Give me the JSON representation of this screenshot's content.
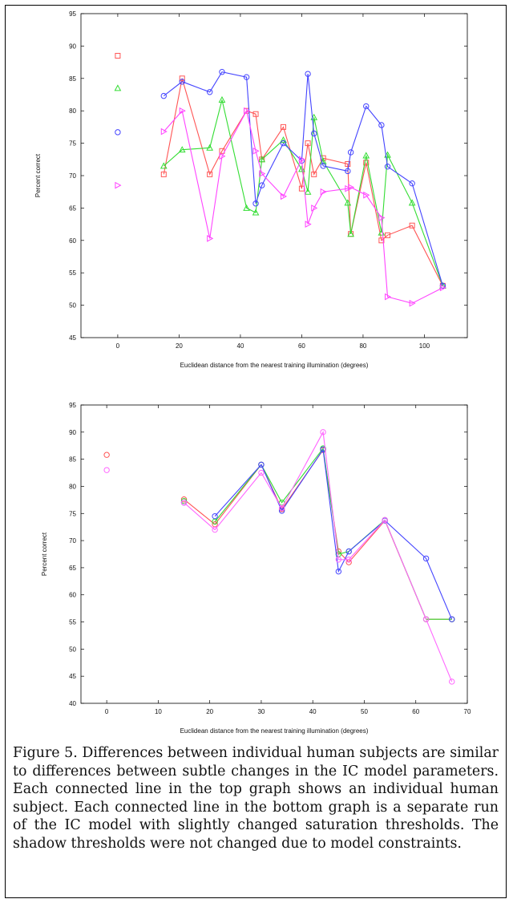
{
  "caption": "Figure 5. Differences between individual human subjects are similar to differences between subtle changes in the IC model parameters. Each connected line in the top graph shows an individual human subject. Each connected line in the bottom graph is a separate run of the IC model with slightly changed saturation thresholds. The shadow thresholds were not changed due to model constraints.",
  "chart_data": [
    {
      "type": "line",
      "xlabel": "Euclidean distance from the nearest training illumination (degrees)",
      "ylabel": "Percent correct",
      "xlim": [
        -12,
        114
      ],
      "ylim": [
        45,
        95
      ],
      "xticks": [
        0,
        20,
        40,
        60,
        80,
        100
      ],
      "yticks": [
        45,
        50,
        55,
        60,
        65,
        70,
        75,
        80,
        85,
        90,
        95
      ],
      "series": [
        {
          "color": "#ff5555",
          "marker": "square",
          "points": [
            [
              0,
              88.5
            ],
            [
              15,
              70.2
            ],
            [
              21,
              85
            ],
            [
              30,
              70.2
            ],
            [
              34,
              73.8
            ],
            [
              42,
              80
            ],
            [
              45,
              79.5
            ],
            [
              47,
              72.5
            ],
            [
              54,
              77.5
            ],
            [
              60,
              68
            ],
            [
              62,
              75
            ],
            [
              64,
              70.2
            ],
            [
              67,
              72.7
            ],
            [
              75,
              71.8
            ],
            [
              76,
              61
            ],
            [
              81,
              72
            ],
            [
              86,
              60
            ],
            [
              88,
              60.8
            ],
            [
              96,
              62.3
            ],
            [
              106,
              53
            ]
          ]
        },
        {
          "color": "#33dd33",
          "marker": "triangle-up",
          "points": [
            [
              0,
              83.5
            ],
            [
              15,
              71.5
            ],
            [
              21,
              74
            ],
            [
              30,
              74.3
            ],
            [
              34,
              81.7
            ],
            [
              42,
              65
            ],
            [
              45,
              64.3
            ],
            [
              47,
              72.5
            ],
            [
              54,
              75.5
            ],
            [
              60,
              71
            ],
            [
              62,
              67.5
            ],
            [
              64,
              79
            ],
            [
              67,
              72.2
            ],
            [
              75,
              65.8
            ],
            [
              76,
              61
            ],
            [
              81,
              73.1
            ],
            [
              86,
              61.2
            ],
            [
              88,
              73.2
            ],
            [
              96,
              65.8
            ],
            [
              106,
              53
            ]
          ]
        },
        {
          "color": "#4444ff",
          "marker": "circle",
          "points": [
            [
              0,
              76.7
            ],
            [
              15,
              82.3
            ],
            [
              21,
              84.5
            ],
            [
              30,
              82.9
            ],
            [
              34,
              86
            ],
            [
              42,
              85.2
            ],
            [
              45,
              65.7
            ],
            [
              47,
              68.5
            ],
            [
              54,
              75
            ],
            [
              60,
              72.3
            ],
            [
              62,
              85.7
            ],
            [
              64,
              76.5
            ],
            [
              67,
              71.5
            ],
            [
              75,
              70.7
            ],
            [
              76,
              73.6
            ],
            [
              81,
              80.7
            ],
            [
              86,
              77.8
            ],
            [
              88,
              71.4
            ],
            [
              96,
              68.8
            ],
            [
              106,
              53
            ]
          ]
        },
        {
          "color": "#ff44ff",
          "marker": "triangle-right",
          "points": [
            [
              0,
              68.5
            ],
            [
              15,
              76.8
            ],
            [
              21,
              80
            ],
            [
              30,
              60.3
            ],
            [
              34,
              73
            ],
            [
              42,
              80
            ],
            [
              45,
              73.8
            ],
            [
              47,
              70.3
            ],
            [
              54,
              66.8
            ],
            [
              60,
              72.5
            ],
            [
              62,
              62.5
            ],
            [
              64,
              65
            ],
            [
              67,
              67.5
            ],
            [
              75,
              68
            ],
            [
              76,
              68.2
            ],
            [
              81,
              67
            ],
            [
              86,
              63.5
            ],
            [
              88,
              51.3
            ],
            [
              96,
              50.3
            ],
            [
              106,
              52.7
            ]
          ]
        }
      ]
    },
    {
      "type": "line",
      "xlabel": "Euclidean distance from the nearest training illumination (degrees)",
      "ylabel": "Percent correct",
      "xlim": [
        -5,
        70
      ],
      "ylim": [
        40,
        95
      ],
      "xticks": [
        0,
        10,
        20,
        30,
        40,
        50,
        60,
        70
      ],
      "yticks": [
        40,
        45,
        50,
        55,
        60,
        65,
        70,
        75,
        80,
        85,
        90,
        95
      ],
      "series": [
        {
          "color": "#ff5555",
          "marker": "circle",
          "points": [
            [
              0,
              85.8
            ],
            [
              15,
              77.6
            ],
            [
              21,
              73
            ],
            [
              30,
              84
            ],
            [
              34,
              75.8
            ],
            [
              42,
              86.7
            ],
            [
              45,
              68
            ],
            [
              47,
              66
            ],
            [
              54,
              73.7
            ],
            [
              62,
              55.5
            ],
            [
              67,
              55.5
            ]
          ]
        },
        {
          "color": "#33dd33",
          "marker": "circle",
          "points": [
            [
              15,
              77.3
            ],
            [
              21,
              73.5
            ],
            [
              30,
              84
            ],
            [
              34,
              77
            ],
            [
              42,
              87
            ],
            [
              45,
              67.5
            ],
            [
              47,
              68
            ],
            [
              54,
              73.8
            ],
            [
              62,
              55.5
            ],
            [
              67,
              55.5
            ]
          ]
        },
        {
          "color": "#4444ff",
          "marker": "circle",
          "points": [
            [
              15,
              77
            ],
            [
              21,
              74.5
            ],
            [
              30,
              84
            ],
            [
              34,
              75.5
            ],
            [
              42,
              86.8
            ],
            [
              45,
              64.3
            ],
            [
              47,
              68
            ],
            [
              54,
              73.7
            ],
            [
              62,
              66.7
            ],
            [
              67,
              55.5
            ]
          ]
        },
        {
          "color": "#ff66ff",
          "marker": "circle",
          "points": [
            [
              0,
              83
            ],
            [
              15,
              77
            ],
            [
              21,
              72
            ],
            [
              30,
              82.5
            ],
            [
              34,
              76
            ],
            [
              42,
              90
            ],
            [
              45,
              66.5
            ],
            [
              47,
              66.5
            ],
            [
              54,
              73.8
            ],
            [
              62,
              55.5
            ],
            [
              67,
              44
            ]
          ]
        }
      ]
    }
  ]
}
